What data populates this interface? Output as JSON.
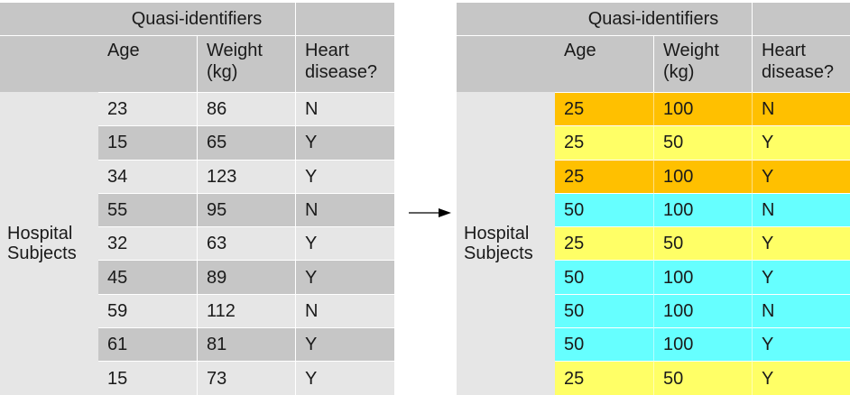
{
  "left": {
    "group_header": "Quasi-identifiers",
    "columns": [
      "Age",
      "Weight (kg)",
      "Heart disease?"
    ],
    "row_label": "Hospital Subjects",
    "rows": [
      [
        "23",
        "86",
        "N"
      ],
      [
        "15",
        "65",
        "Y"
      ],
      [
        "34",
        "123",
        "Y"
      ],
      [
        "55",
        "95",
        "N"
      ],
      [
        "32",
        "63",
        "Y"
      ],
      [
        "45",
        "89",
        "Y"
      ],
      [
        "59",
        "112",
        "N"
      ],
      [
        "61",
        "81",
        "Y"
      ],
      [
        "15",
        "73",
        "Y"
      ]
    ]
  },
  "right": {
    "group_header": "Quasi-identifiers",
    "columns": [
      "Age",
      "Weight (kg)",
      "Heart disease?"
    ],
    "row_label": "Hospital Subjects",
    "rows": [
      [
        "25",
        "100",
        "N"
      ],
      [
        "25",
        "50",
        "Y"
      ],
      [
        "25",
        "100",
        "Y"
      ],
      [
        "50",
        "100",
        "N"
      ],
      [
        "25",
        "50",
        "Y"
      ],
      [
        "50",
        "100",
        "Y"
      ],
      [
        "50",
        "100",
        "N"
      ],
      [
        "50",
        "100",
        "Y"
      ],
      [
        "25",
        "50",
        "Y"
      ]
    ],
    "row_colors": [
      "orange",
      "yellow",
      "orange",
      "cyan",
      "yellow",
      "cyan",
      "cyan",
      "cyan",
      "yellow"
    ]
  },
  "colors": {
    "orange": "#ffc000",
    "yellow": "#ffff66",
    "cyan": "#66ffff",
    "header_gray": "#c6c6c6",
    "row_light_gray": "#e6e6e6"
  },
  "arrow_icon": "right-arrow-icon"
}
